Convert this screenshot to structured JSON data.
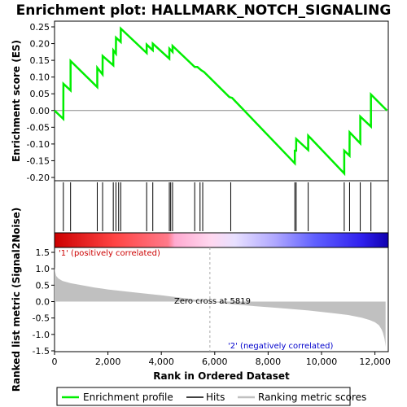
{
  "chart_data": {
    "type": "line",
    "title": "Enrichment plot: HALLMARK_NOTCH_SIGNALING",
    "es_panel": {
      "ylabel": "Enrichment score (ES)",
      "ylim": [
        -0.2,
        0.25
      ],
      "yticks": [
        "0.25",
        "0.20",
        "0.15",
        "0.10",
        "0.05",
        "0.00",
        "-0.05",
        "-0.10",
        "-0.15",
        "-0.20"
      ],
      "ytick_values": [
        0.25,
        0.2,
        0.15,
        0.1,
        0.05,
        0.0,
        -0.05,
        -0.1,
        -0.15,
        -0.2
      ],
      "series": [
        {
          "name": "Enrichment profile",
          "color": "#00ee00",
          "x": [
            0,
            330,
            331,
            600,
            601,
            1600,
            1601,
            1800,
            1801,
            2200,
            2201,
            2300,
            2301,
            2480,
            2481,
            3450,
            3451,
            3680,
            3681,
            4300,
            4301,
            4420,
            4421,
            5250,
            5350,
            5500,
            5600,
            6550,
            6650,
            9000,
            9001,
            9050,
            9051,
            9500,
            9501,
            10850,
            10851,
            11050,
            11051,
            11450,
            11451,
            11850,
            11851,
            12450
          ],
          "y": [
            0.0,
            -0.025,
            0.08,
            0.06,
            0.148,
            0.07,
            0.128,
            0.108,
            0.163,
            0.135,
            0.18,
            0.17,
            0.218,
            0.205,
            0.245,
            0.172,
            0.197,
            0.18,
            0.2,
            0.155,
            0.185,
            0.175,
            0.193,
            0.13,
            0.13,
            0.12,
            0.115,
            0.04,
            0.038,
            -0.158,
            -0.12,
            -0.12,
            -0.085,
            -0.118,
            -0.075,
            -0.188,
            -0.12,
            -0.135,
            -0.065,
            -0.098,
            -0.018,
            -0.048,
            0.048,
            0.0
          ]
        }
      ]
    },
    "hits": {
      "name": "Hits",
      "positions": [
        330,
        600,
        1600,
        1800,
        2200,
        2300,
        2400,
        2480,
        3450,
        3680,
        4300,
        4350,
        4420,
        5250,
        5450,
        5550,
        6600,
        9000,
        9050,
        9500,
        10850,
        11050,
        11450,
        11850
      ]
    },
    "rank_panel": {
      "ylabel": "Ranked list metric (Signal2Noise)",
      "xlabel": "Rank in Ordered Dataset",
      "ylim": [
        -1.5,
        1.5
      ],
      "yticks": [
        "1.5",
        "1.0",
        "0.5",
        "0.0",
        "-0.5",
        "-1.0",
        "-1.5"
      ],
      "ytick_values": [
        1.5,
        1.0,
        0.5,
        0.0,
        -0.5,
        -1.0,
        -1.5
      ],
      "xticks": [
        "0",
        "2,000",
        "4,000",
        "6,000",
        "8,000",
        "10,000",
        "12,000"
      ],
      "xtick_values": [
        0,
        2000,
        4000,
        6000,
        8000,
        10000,
        12000
      ],
      "xlim": [
        0,
        12500
      ],
      "metric_x": [
        0,
        20,
        60,
        150,
        300,
        600,
        1000,
        1500,
        2000,
        3000,
        4000,
        5000,
        5819,
        6500,
        7500,
        8500,
        9500,
        10500,
        11000,
        11500,
        11800,
        12000,
        12150,
        12250,
        12300,
        12350,
        12380,
        12400
      ],
      "metric_y": [
        1.05,
        0.92,
        0.78,
        0.7,
        0.63,
        0.56,
        0.5,
        0.43,
        0.37,
        0.28,
        0.19,
        0.09,
        0.0,
        -0.07,
        -0.14,
        -0.2,
        -0.27,
        -0.36,
        -0.41,
        -0.49,
        -0.56,
        -0.63,
        -0.72,
        -0.85,
        -0.95,
        -1.1,
        -1.25,
        -1.38
      ],
      "zero_cross_label": "Zero cross at 5819",
      "zero_cross_rank": 5819,
      "pos_label": "'1' (positively correlated)",
      "neg_label": "'2' (negatively correlated)",
      "pos_color": "#cc0000",
      "neg_color": "#0000cc",
      "fill_color": "#c0c0c0"
    },
    "legend": [
      {
        "label": "Enrichment profile",
        "color": "#00ee00"
      },
      {
        "label": "Hits",
        "color": "#000000"
      },
      {
        "label": "Ranking metric scores",
        "color": "#c0c0c0"
      }
    ]
  }
}
